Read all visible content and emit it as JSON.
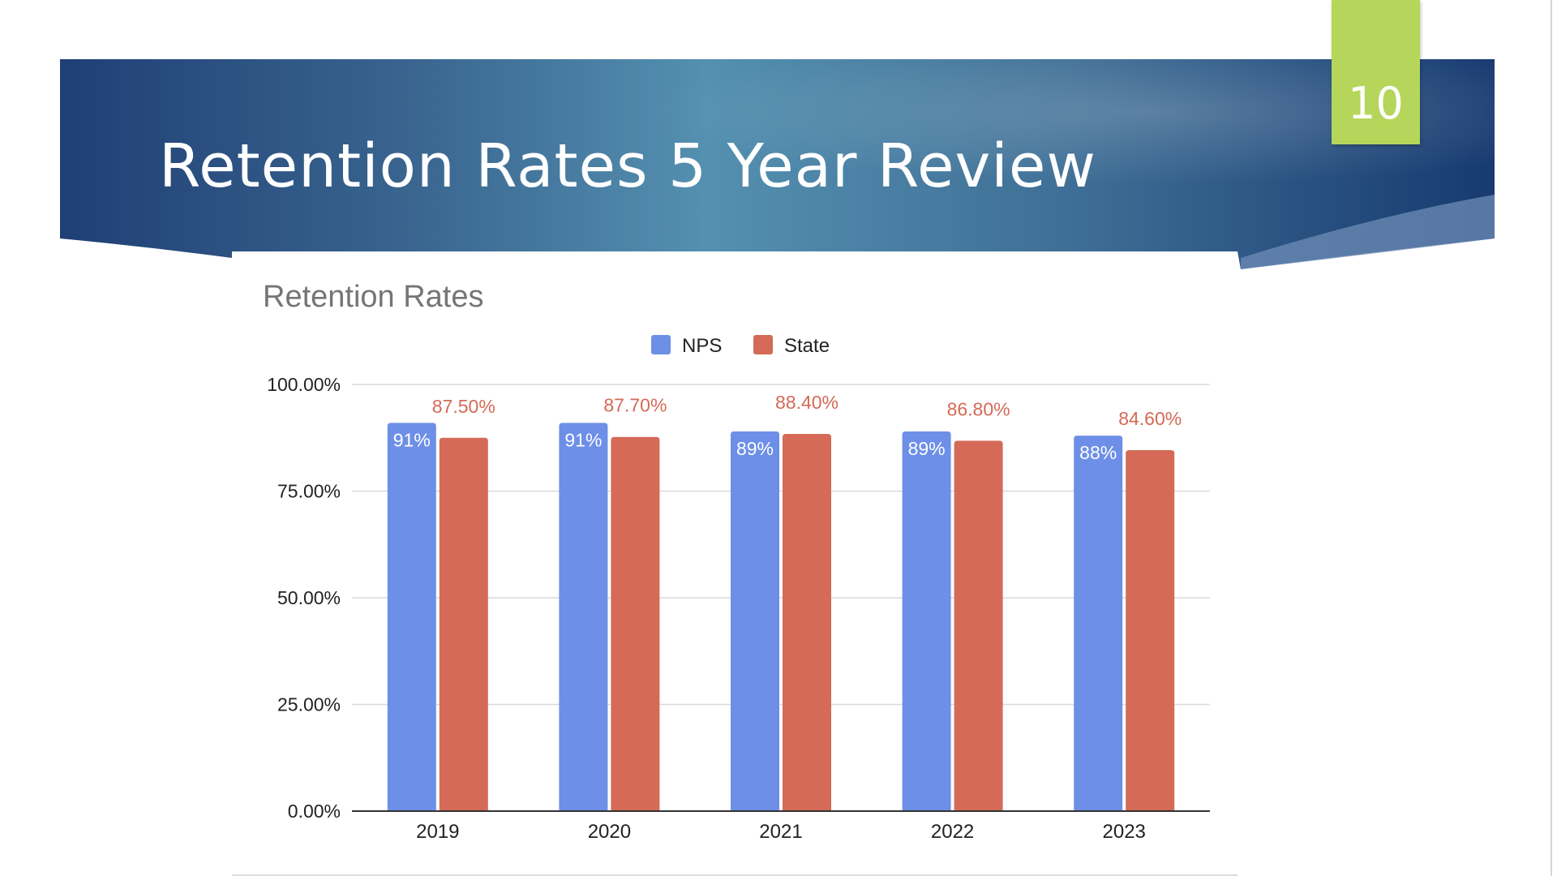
{
  "slide": {
    "title": "Retention Rates 5 Year Review",
    "number": "10"
  },
  "colors": {
    "banner_dark": "#1e3c72",
    "banner_mid": "#4f8cae",
    "tab_green": "#b5d65a",
    "nps": "#6d8fe7",
    "state": "#d46a57"
  },
  "chart_data": {
    "type": "bar",
    "title": "Retention Rates",
    "categories": [
      "2019",
      "2020",
      "2021",
      "2022",
      "2023"
    ],
    "series": [
      {
        "name": "NPS",
        "values": [
          91,
          91,
          89,
          89,
          88
        ],
        "labels": [
          "91%",
          "91%",
          "89%",
          "89%",
          "88%"
        ],
        "color": "#6d8fe7"
      },
      {
        "name": "State",
        "values": [
          87.5,
          87.7,
          88.4,
          86.8,
          84.6
        ],
        "labels": [
          "87.50%",
          "87.70%",
          "88.40%",
          "86.80%",
          "84.60%"
        ],
        "color": "#d46a57"
      }
    ],
    "ylim": [
      0,
      100
    ],
    "yticks": [
      0,
      25,
      50,
      75,
      100
    ],
    "ytick_labels": [
      "0.00%",
      "25.00%",
      "50.00%",
      "75.00%",
      "100.00%"
    ],
    "xlabel": "",
    "ylabel": "",
    "grid": true,
    "legend": "top-center"
  }
}
